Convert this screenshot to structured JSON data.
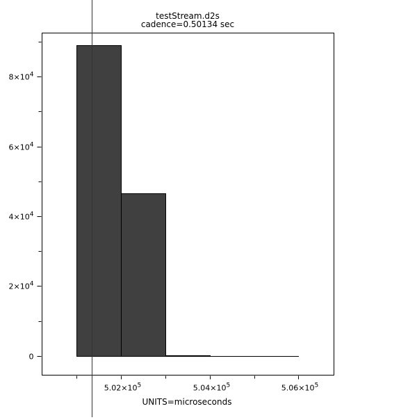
{
  "chart_data": {
    "type": "bar",
    "title": "testStream.d2s",
    "subtitle": "cadence=0.50134 sec",
    "xlabel": "UNITS=microseconds",
    "ylabel": "",
    "bins": [
      {
        "x0": 501000,
        "x1": 502000,
        "value": 89000
      },
      {
        "x0": 502000,
        "x1": 503000,
        "value": 46600
      },
      {
        "x0": 503000,
        "x1": 504000,
        "value": 200
      },
      {
        "x0": 504000,
        "x1": 506000,
        "value": 0
      }
    ],
    "marker_line_x": 501340,
    "xlim": [
      500220,
      506800
    ],
    "ylim": [
      -5500,
      92500
    ],
    "x_major_ticks": [
      {
        "value": 502000,
        "mant": "5.02×10",
        "exp": "5"
      },
      {
        "value": 504000,
        "mant": "5.04×10",
        "exp": "5"
      },
      {
        "value": 506000,
        "mant": "5.06×10",
        "exp": "5"
      }
    ],
    "x_minor_ticks": [
      501000,
      503000,
      505000
    ],
    "y_major_ticks": [
      {
        "value": 0,
        "mant": "0",
        "exp": ""
      },
      {
        "value": 20000,
        "mant": "2×10",
        "exp": "4"
      },
      {
        "value": 40000,
        "mant": "4×10",
        "exp": "4"
      },
      {
        "value": 60000,
        "mant": "6×10",
        "exp": "4"
      },
      {
        "value": 80000,
        "mant": "8×10",
        "exp": "4"
      }
    ],
    "y_minor_ticks": [
      10000,
      30000,
      50000,
      70000,
      90000
    ],
    "bar_color": "#404040",
    "grid": false
  }
}
